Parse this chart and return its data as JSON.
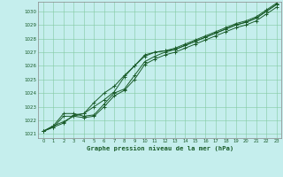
{
  "xlabel": "Graphe pression niveau de la mer (hPa)",
  "ylim": [
    1020.7,
    1030.7
  ],
  "xlim": [
    -0.5,
    23.5
  ],
  "yticks": [
    1021,
    1022,
    1023,
    1024,
    1025,
    1026,
    1027,
    1028,
    1029,
    1030
  ],
  "xticks": [
    0,
    1,
    2,
    3,
    4,
    5,
    6,
    7,
    8,
    9,
    10,
    11,
    12,
    13,
    14,
    15,
    16,
    17,
    18,
    19,
    20,
    21,
    22,
    23
  ],
  "bg_color": "#c5eeed",
  "grid_color": "#82c9a0",
  "line_color": "#1a5c2a",
  "series1": [
    1021.2,
    1021.6,
    1021.9,
    1022.3,
    1022.5,
    1023.0,
    1023.5,
    1024.1,
    1025.2,
    1026.0,
    1026.7,
    1027.0,
    1027.1,
    1027.2,
    1027.5,
    1027.8,
    1028.1,
    1028.4,
    1028.7,
    1029.0,
    1029.2,
    1029.5,
    1030.0,
    1030.5
  ],
  "series2": [
    1021.2,
    1021.5,
    1021.8,
    1022.4,
    1022.5,
    1023.3,
    1024.0,
    1024.5,
    1025.3,
    1026.0,
    1026.8,
    1027.0,
    1027.1,
    1027.3,
    1027.6,
    1027.9,
    1028.2,
    1028.5,
    1028.8,
    1029.1,
    1029.3,
    1029.6,
    1030.1,
    1030.6
  ],
  "series3": [
    1021.2,
    1021.6,
    1022.5,
    1022.5,
    1022.3,
    1022.4,
    1023.2,
    1024.0,
    1024.3,
    1025.3,
    1026.3,
    1026.7,
    1027.0,
    1027.2,
    1027.5,
    1027.8,
    1028.1,
    1028.4,
    1028.7,
    1029.0,
    1029.2,
    1029.5,
    1030.0,
    1030.5
  ],
  "series4": [
    1021.2,
    1021.5,
    1022.3,
    1022.3,
    1022.2,
    1022.3,
    1023.0,
    1023.8,
    1024.2,
    1025.0,
    1026.1,
    1026.5,
    1026.8,
    1027.0,
    1027.3,
    1027.6,
    1027.9,
    1028.2,
    1028.5,
    1028.8,
    1029.0,
    1029.3,
    1029.8,
    1030.3
  ]
}
